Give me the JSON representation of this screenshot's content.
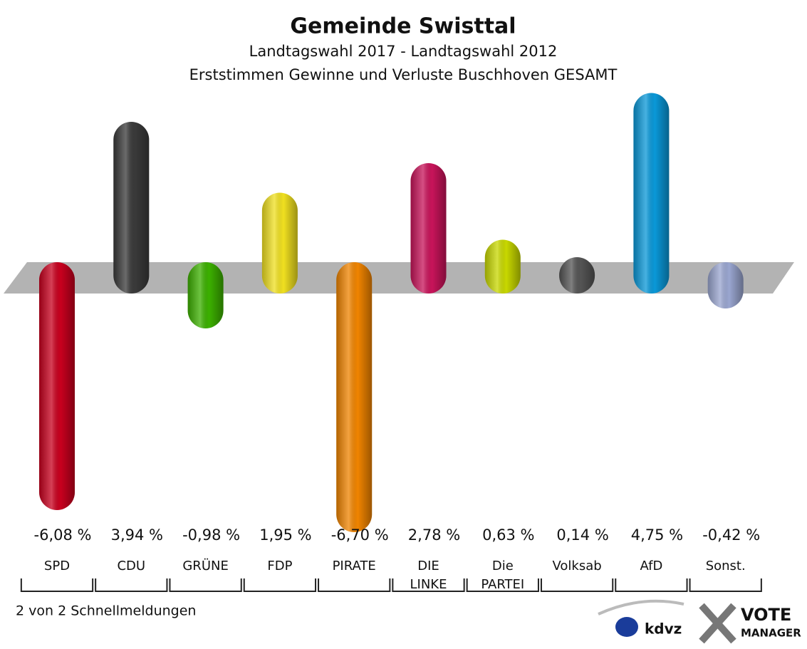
{
  "chart_data": {
    "type": "bar",
    "title": "Gemeinde Swisttal",
    "subtitle": "Landtagswahl 2017 - Landtagswahl 2012",
    "subtitle2": "Erststimmen Gewinne und Verluste Buschhoven GESAMT",
    "categories": [
      "SPD",
      "CDU",
      "GRÜNE",
      "FDP",
      "PIRATE",
      "DIE LINKE",
      "Die PARTEI",
      "Volksab",
      "AfD",
      "Sonst."
    ],
    "values": [
      -6.08,
      3.94,
      -0.98,
      1.95,
      -6.7,
      2.78,
      0.63,
      0.14,
      4.75,
      -0.42
    ],
    "value_labels": [
      "-6,08 %",
      "3,94 %",
      "-0,98 %",
      "1,95 %",
      "-6,70 %",
      "2,78 %",
      "0,63 %",
      "0,14 %",
      "4,75 %",
      "-0,42 %"
    ],
    "colors": [
      "#c8001e",
      "#3a3a3a",
      "#3cb000",
      "#f0e020",
      "#f08400",
      "#c8145a",
      "#c8d800",
      "#555555",
      "#0a98d8",
      "#9aa6d0"
    ],
    "footnote": "2 von 2 Schnellmeldungen",
    "logo": {
      "left": "kdvz",
      "top": "VOTE",
      "bottom": "MANAGER"
    }
  }
}
